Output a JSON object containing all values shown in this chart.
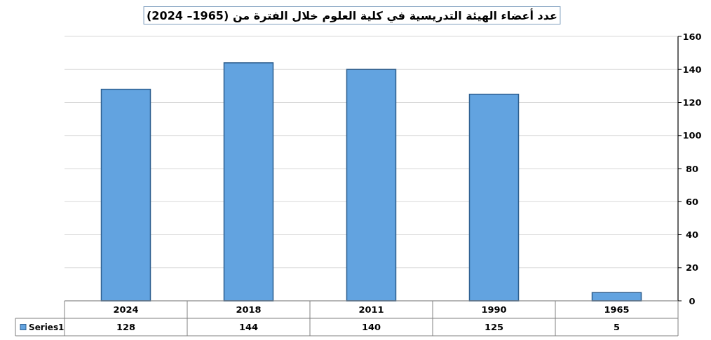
{
  "chart_data": {
    "type": "bar",
    "title": "عدد أعضاء الهيئة التدريسية في كلية العلوم خلال الفترة من (1965– 2024)",
    "categories": [
      "2024",
      "2018",
      "2011",
      "1990",
      "1965"
    ],
    "series": [
      {
        "name": "Series1",
        "color": "#62a3e0",
        "values": [
          128,
          144,
          140,
          125,
          5
        ]
      }
    ],
    "ylim": [
      0,
      160
    ],
    "yticks": [
      0,
      20,
      40,
      60,
      80,
      100,
      120,
      140,
      160
    ],
    "grid": "y",
    "data_labels": true,
    "legend": "bottom left"
  }
}
